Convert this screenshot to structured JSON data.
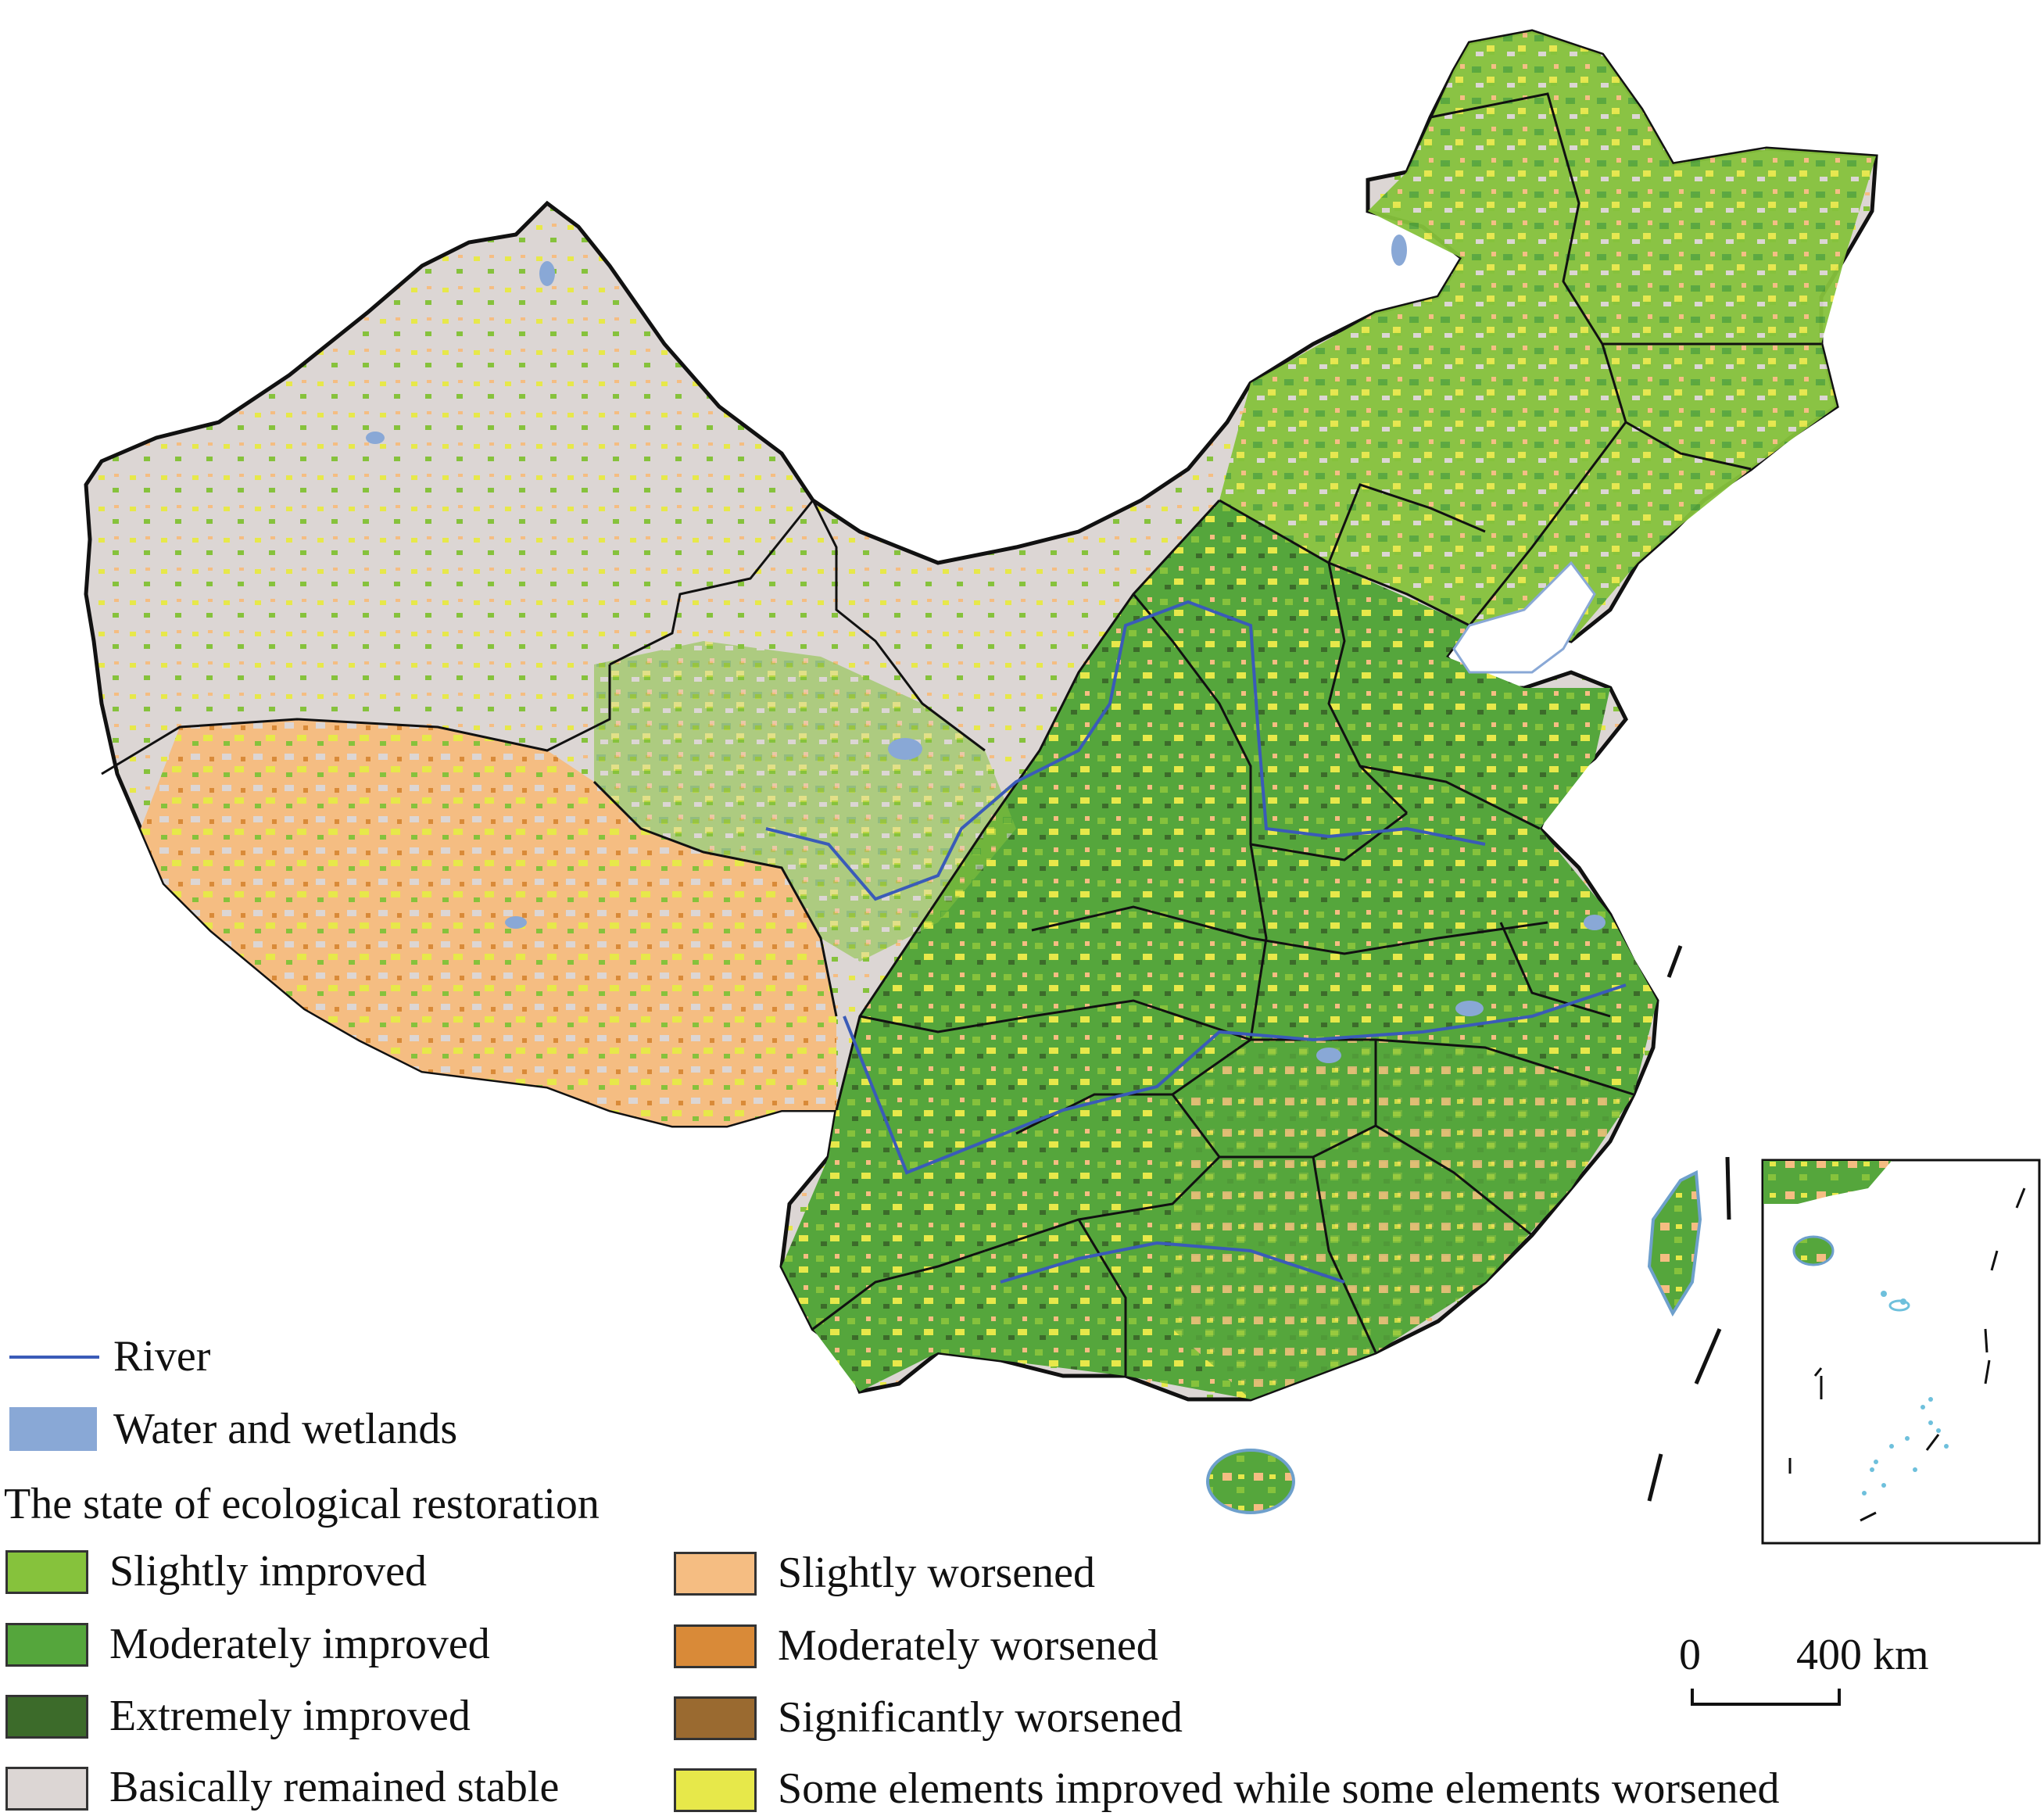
{
  "colors": {
    "river": "#3a5bb8",
    "water": "#89a8d6",
    "slightly_improved": "#86c23c",
    "moderately_improved": "#55a63c",
    "extremely_improved": "#3c6b2a",
    "stable": "#dcd6d4",
    "slightly_worsened": "#f5bd82",
    "moderately_worsened": "#d98a38",
    "significantly_worsened": "#9a6a30",
    "mixed": "#e7e84a",
    "boundary": "#111111"
  },
  "legend": {
    "river": "River",
    "water": "Water and wetlands",
    "title": "The state of ecological restoration",
    "items_left": [
      {
        "label": "Slightly improved",
        "color": "#86c23c"
      },
      {
        "label": "Moderately improved",
        "color": "#55a63c"
      },
      {
        "label": "Extremely improved",
        "color": "#3c6b2a"
      },
      {
        "label": "Basically remained stable",
        "color": "#dcd6d4"
      }
    ],
    "items_right": [
      {
        "label": "Slightly worsened",
        "color": "#f5bd82"
      },
      {
        "label": "Moderately worsened",
        "color": "#d98a38"
      },
      {
        "label": "Significantly worsened",
        "color": "#9a6a30"
      },
      {
        "label": "Some elements improved while some elements worsened",
        "color": "#e7e84a"
      }
    ]
  },
  "scale_bar": {
    "start": "0",
    "end": "400 km"
  }
}
